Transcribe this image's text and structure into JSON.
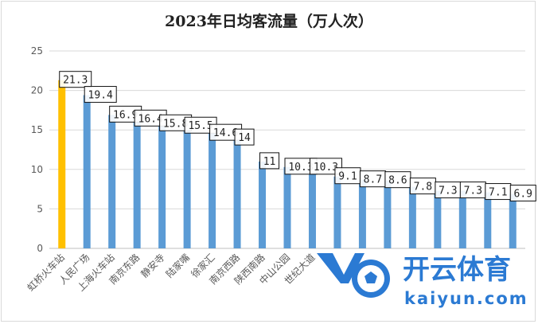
{
  "chart_data": {
    "type": "bar",
    "title": "2023年日均客流量（万人次）",
    "categories": [
      "虹桥火车站",
      "人民广场",
      "上海火车站",
      "南京东路",
      "静安寺",
      "陆家嘴",
      "徐家汇",
      "南京西路",
      "陕西南路",
      "中山公园",
      "世纪大道",
      "",
      "",
      "",
      "",
      "",
      "",
      "",
      ""
    ],
    "values": [
      21.3,
      19.4,
      16.9,
      16.4,
      15.8,
      15.5,
      14.6,
      14,
      11,
      10.3,
      10.3,
      9.1,
      8.7,
      8.6,
      7.8,
      7.3,
      7.3,
      7.1,
      6.9
    ],
    "data_labels": [
      "21.3",
      "19.4",
      "16.9",
      "16.4",
      "15.8",
      "15.5",
      "14.6",
      "14",
      "11",
      "10.3",
      "10.3",
      "9.1",
      "8.7",
      "8.6",
      "7.8",
      "7.3",
      "7.3",
      "7.1",
      "6.9"
    ],
    "ylim": [
      0,
      25
    ],
    "yticks": [
      0,
      5,
      10,
      15,
      20,
      25
    ],
    "grid": true,
    "legend": "none",
    "colors": {
      "highlight": "#ffc000",
      "bar": "#5b9bd5",
      "grid": "#d9d9d9",
      "axis": "#bfbfbf"
    },
    "highlight_index": 0
  },
  "watermark": {
    "brand": "开云体育",
    "url": "kaiyun.com",
    "icon": "football-logo-icon"
  }
}
